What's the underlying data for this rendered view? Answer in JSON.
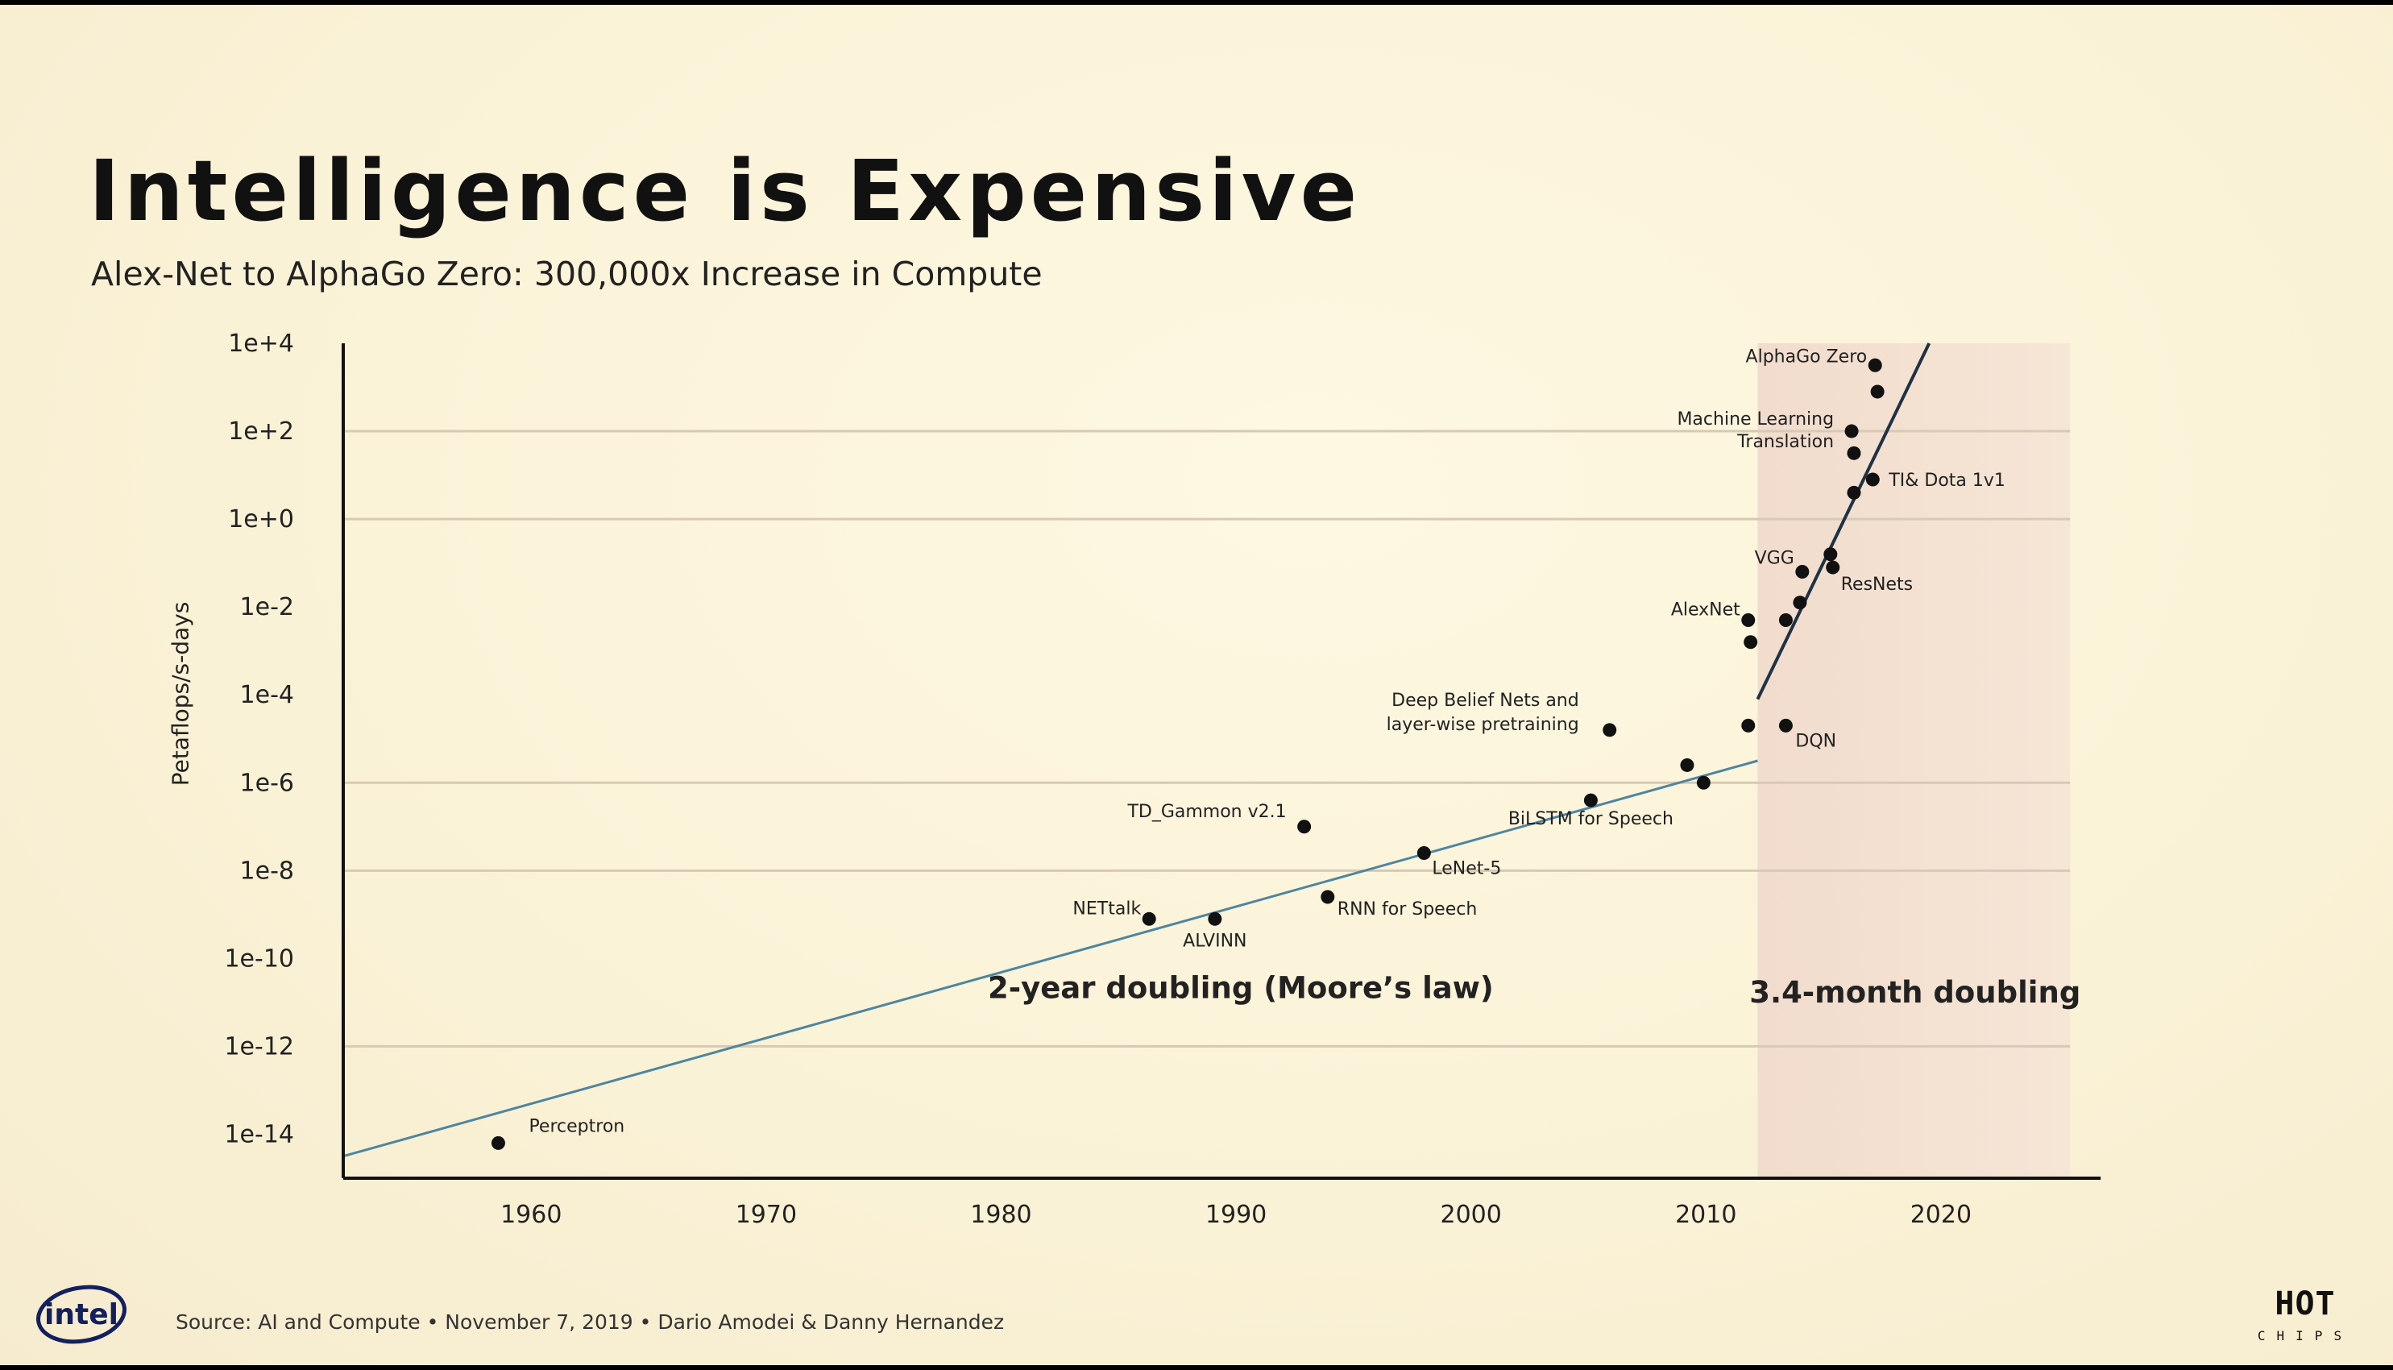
{
  "slide": {
    "title": "Intelligence is Expensive",
    "subtitle": "Alex-Net to AlphaGo Zero: 300,000x Increase in Compute",
    "source": "Source: AI and Compute • November 7, 2019 • Dario Amodei & Danny Hernandez",
    "logos": {
      "left": "intel",
      "right_word": "HOT",
      "right_sub": "CHIPS"
    }
  },
  "chart_data": {
    "type": "scatter",
    "title": "",
    "xlabel": "",
    "ylabel": "Petaflops/s-days",
    "y_scale": "log10",
    "xlim": [
      1952,
      2027
    ],
    "ylim_exponent": [
      -15.0,
      4.0
    ],
    "x_ticks": [
      1960,
      1970,
      1980,
      1990,
      2000,
      2010,
      2020
    ],
    "x_tick_labels": [
      "1960",
      "1970",
      "1980",
      "1990",
      "2000",
      "2010",
      "2020"
    ],
    "y_ticks_exponent": [
      4,
      2,
      0,
      -2,
      -4,
      -6,
      -8,
      -10,
      -12,
      -14
    ],
    "y_tick_labels": [
      "1e+4",
      "1e+2",
      "1e+0",
      "1e-2",
      "1e-4",
      "1e-6",
      "1e-8",
      "1e-10",
      "1e-12",
      "1e-14"
    ],
    "gridlines_exponent": [
      2,
      0,
      -6,
      -8,
      -12
    ],
    "points": [
      {
        "x": 1958.6,
        "y_exponent": -14.2,
        "label": "Perceptron"
      },
      {
        "x": 1986.3,
        "y_exponent": -9.1,
        "label": "NETtalk"
      },
      {
        "x": 1989.1,
        "y_exponent": -9.1,
        "label": "ALVINN"
      },
      {
        "x": 1992.9,
        "y_exponent": -7.0,
        "label": "TD_Gammon v2.1"
      },
      {
        "x": 1993.9,
        "y_exponent": -8.6,
        "label": "RNN for Speech"
      },
      {
        "x": 1998.0,
        "y_exponent": -7.6,
        "label": "LeNet-5"
      },
      {
        "x": 2005.1,
        "y_exponent": -6.4,
        "label": "BiLSTM for Speech"
      },
      {
        "x": 2005.9,
        "y_exponent": -4.8,
        "label": "Deep Belief Nets and layer-wise pretraining"
      },
      {
        "x": 2009.2,
        "y_exponent": -5.6,
        "label": ""
      },
      {
        "x": 2009.9,
        "y_exponent": -6.0,
        "label": ""
      },
      {
        "x": 2011.8,
        "y_exponent": -4.7,
        "label": ""
      },
      {
        "x": 2011.8,
        "y_exponent": -2.3,
        "label": "AlexNet"
      },
      {
        "x": 2011.9,
        "y_exponent": -2.8,
        "label": ""
      },
      {
        "x": 2013.4,
        "y_exponent": -4.7,
        "label": "DQN"
      },
      {
        "x": 2013.4,
        "y_exponent": -2.3,
        "label": ""
      },
      {
        "x": 2014.0,
        "y_exponent": -1.9,
        "label": ""
      },
      {
        "x": 2014.1,
        "y_exponent": -1.2,
        "label": "VGG"
      },
      {
        "x": 2015.3,
        "y_exponent": -0.8,
        "label": ""
      },
      {
        "x": 2015.4,
        "y_exponent": -1.1,
        "label": "ResNets"
      },
      {
        "x": 2016.3,
        "y_exponent": 0.6,
        "label": ""
      },
      {
        "x": 2016.3,
        "y_exponent": 1.5,
        "label": ""
      },
      {
        "x": 2016.2,
        "y_exponent": 2.0,
        "label": "Machine Learning Translation"
      },
      {
        "x": 2017.1,
        "y_exponent": 0.9,
        "label": "TI& Dota 1v1"
      },
      {
        "x": 2017.3,
        "y_exponent": 2.9,
        "label": ""
      },
      {
        "x": 2017.2,
        "y_exponent": 3.5,
        "label": "AlphaGo Zero"
      }
    ],
    "trend_lines": [
      {
        "name": "2-year doubling (Moore’s law)",
        "x": [
          1952,
          2012.2
        ],
        "y_exponent": [
          -14.5,
          -5.5
        ]
      },
      {
        "name": "3.4-month doubling",
        "x": [
          2012.2,
          2019.5
        ],
        "y_exponent": [
          -4.1,
          4.0
        ]
      }
    ],
    "shaded_region": {
      "x_start": 2012.2,
      "x_end": 2025.5
    },
    "annotations": {
      "moore": "2-year doubling (Moore’s law)",
      "fast": "3.4-month doubling"
    }
  }
}
